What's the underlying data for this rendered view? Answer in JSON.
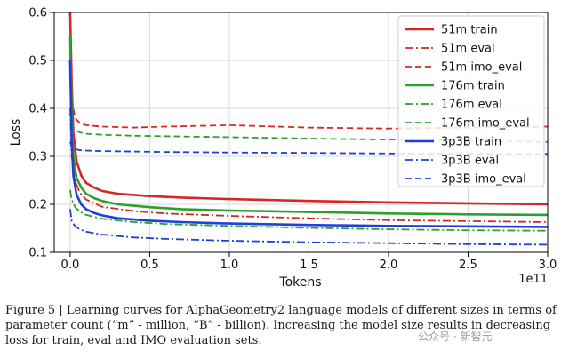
{
  "chart_data": {
    "type": "line",
    "xlabel": "Tokens",
    "ylabel": "Loss",
    "x_offset_label": "1e11",
    "xlim": [
      -0.1,
      3.0
    ],
    "ylim": [
      0.1,
      0.6
    ],
    "xticks": [
      0.0,
      0.5,
      1.0,
      1.5,
      2.0,
      2.5,
      3.0
    ],
    "xtick_labels": [
      "0.0",
      "0.5",
      "1.0",
      "1.5",
      "2.0",
      "2.5",
      "3.0"
    ],
    "yticks": [
      0.1,
      0.2,
      0.3,
      0.4,
      0.5,
      0.6
    ],
    "ytick_labels": [
      "0.1",
      "0.2",
      "0.3",
      "0.4",
      "0.5",
      "0.6"
    ],
    "grid": true,
    "legend_position": "top-right",
    "series": [
      {
        "name": "51m train",
        "color": "#d62728",
        "dash": "solid",
        "x": [
          0.0,
          0.01,
          0.02,
          0.04,
          0.07,
          0.1,
          0.15,
          0.2,
          0.3,
          0.5,
          0.7,
          1.0,
          1.5,
          2.0,
          2.5,
          3.0
        ],
        "y": [
          0.6,
          0.45,
          0.35,
          0.29,
          0.26,
          0.245,
          0.235,
          0.228,
          0.222,
          0.217,
          0.214,
          0.211,
          0.207,
          0.204,
          0.202,
          0.2
        ]
      },
      {
        "name": "51m eval",
        "color": "#d62728",
        "dash": "dashdot",
        "x": [
          0.0,
          0.01,
          0.03,
          0.06,
          0.1,
          0.2,
          0.4,
          0.6,
          1.0,
          1.5,
          2.0,
          2.5,
          3.0
        ],
        "y": [
          0.4,
          0.3,
          0.25,
          0.225,
          0.21,
          0.195,
          0.186,
          0.181,
          0.176,
          0.171,
          0.167,
          0.165,
          0.163
        ]
      },
      {
        "name": "51m imo_eval",
        "color": "#d62728",
        "dash": "dashed",
        "x": [
          0.0,
          0.01,
          0.03,
          0.06,
          0.1,
          0.2,
          0.4,
          0.6,
          1.0,
          1.5,
          2.0,
          2.5,
          3.0
        ],
        "y": [
          0.48,
          0.42,
          0.38,
          0.37,
          0.365,
          0.362,
          0.36,
          0.362,
          0.365,
          0.36,
          0.358,
          0.36,
          0.362
        ]
      },
      {
        "name": "176m train",
        "color": "#2ca02c",
        "dash": "solid",
        "x": [
          0.0,
          0.01,
          0.02,
          0.04,
          0.07,
          0.1,
          0.15,
          0.2,
          0.3,
          0.5,
          0.7,
          1.0,
          1.5,
          2.0,
          2.5,
          3.0
        ],
        "y": [
          0.55,
          0.38,
          0.3,
          0.255,
          0.235,
          0.222,
          0.213,
          0.207,
          0.2,
          0.194,
          0.19,
          0.187,
          0.184,
          0.181,
          0.179,
          0.178
        ]
      },
      {
        "name": "176m eval",
        "color": "#2ca02c",
        "dash": "dashdot",
        "x": [
          0.0,
          0.01,
          0.03,
          0.06,
          0.1,
          0.2,
          0.4,
          0.6,
          1.0,
          1.5,
          2.0,
          2.5,
          3.0
        ],
        "y": [
          0.23,
          0.21,
          0.195,
          0.185,
          0.178,
          0.17,
          0.163,
          0.159,
          0.155,
          0.151,
          0.148,
          0.146,
          0.145
        ]
      },
      {
        "name": "176m imo_eval",
        "color": "#2ca02c",
        "dash": "dashed",
        "x": [
          0.0,
          0.01,
          0.03,
          0.06,
          0.1,
          0.2,
          0.4,
          0.6,
          1.0,
          1.5,
          2.0,
          2.5,
          3.0
        ],
        "y": [
          0.39,
          0.37,
          0.355,
          0.35,
          0.347,
          0.345,
          0.343,
          0.342,
          0.34,
          0.337,
          0.335,
          0.333,
          0.33
        ]
      },
      {
        "name": "3p3B train",
        "color": "#1f3fd6",
        "dash": "solid",
        "x": [
          0.0,
          0.01,
          0.02,
          0.04,
          0.07,
          0.1,
          0.15,
          0.2,
          0.3,
          0.5,
          0.7,
          1.0,
          1.5,
          2.0,
          2.5,
          3.0
        ],
        "y": [
          0.5,
          0.33,
          0.26,
          0.22,
          0.2,
          0.19,
          0.182,
          0.177,
          0.171,
          0.166,
          0.163,
          0.16,
          0.157,
          0.155,
          0.154,
          0.153
        ]
      },
      {
        "name": "3p3B eval",
        "color": "#1f3fd6",
        "dash": "dashdot",
        "x": [
          0.0,
          0.01,
          0.03,
          0.06,
          0.1,
          0.2,
          0.4,
          0.6,
          1.0,
          1.5,
          2.0,
          2.5,
          3.0
        ],
        "y": [
          0.19,
          0.165,
          0.155,
          0.148,
          0.143,
          0.137,
          0.131,
          0.128,
          0.124,
          0.121,
          0.119,
          0.117,
          0.116
        ]
      },
      {
        "name": "3p3B imo_eval",
        "color": "#1f3fd6",
        "dash": "dashed",
        "x": [
          0.0,
          0.01,
          0.03,
          0.06,
          0.1,
          0.2,
          0.4,
          0.6,
          1.0,
          1.5,
          2.0,
          2.5,
          3.0
        ],
        "y": [
          0.33,
          0.32,
          0.315,
          0.313,
          0.312,
          0.311,
          0.31,
          0.309,
          0.308,
          0.307,
          0.306,
          0.305,
          0.305
        ]
      }
    ]
  },
  "caption": {
    "text": "Figure 5 | Learning curves for AlphaGeometry2 language models of different sizes in terms of parameter count (“m” - million, “B” - billion). Increasing the model size results in decreasing loss for train, eval and IMO evaluation sets."
  },
  "watermark": {
    "text": "公众号 · 新智元"
  }
}
